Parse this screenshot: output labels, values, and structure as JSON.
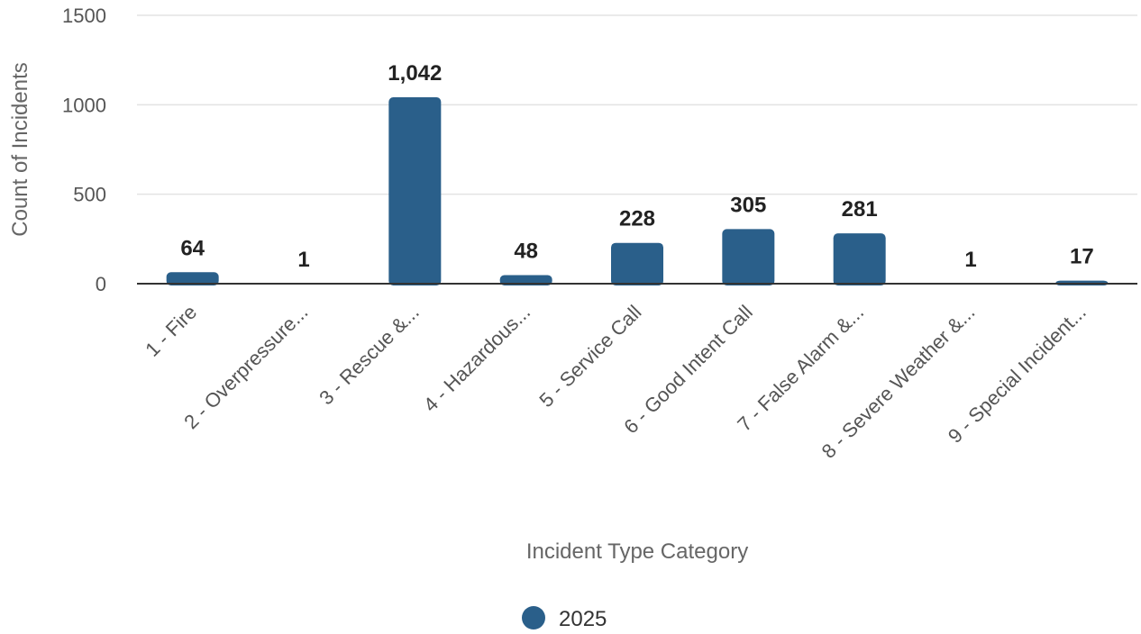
{
  "chart_data": {
    "type": "bar",
    "categories": [
      "1 - Fire",
      "2 - Overpressure...",
      "3 - Rescue &...",
      "4 - Hazardous...",
      "5 - Service Call",
      "6 - Good Intent Call",
      "7 - False Alarm &...",
      "8 - Severe Weather &...",
      "9 - Special Incident..."
    ],
    "series": [
      {
        "name": "2025",
        "values": [
          64,
          1,
          1042,
          48,
          228,
          305,
          281,
          1,
          17
        ],
        "data_labels": [
          "64",
          "1",
          "1,042",
          "48",
          "228",
          "305",
          "281",
          "1",
          "17"
        ],
        "color": "#2a5f8a"
      }
    ],
    "xlabel": "Incident Type Category",
    "ylabel": "Count of Incidents",
    "ylim": [
      0,
      1500
    ],
    "yticks": [
      0,
      500,
      1000,
      1500
    ],
    "ytick_labels": [
      "0",
      "500",
      "1000",
      "1500"
    ],
    "grid": true,
    "legend": "bottom-center"
  }
}
